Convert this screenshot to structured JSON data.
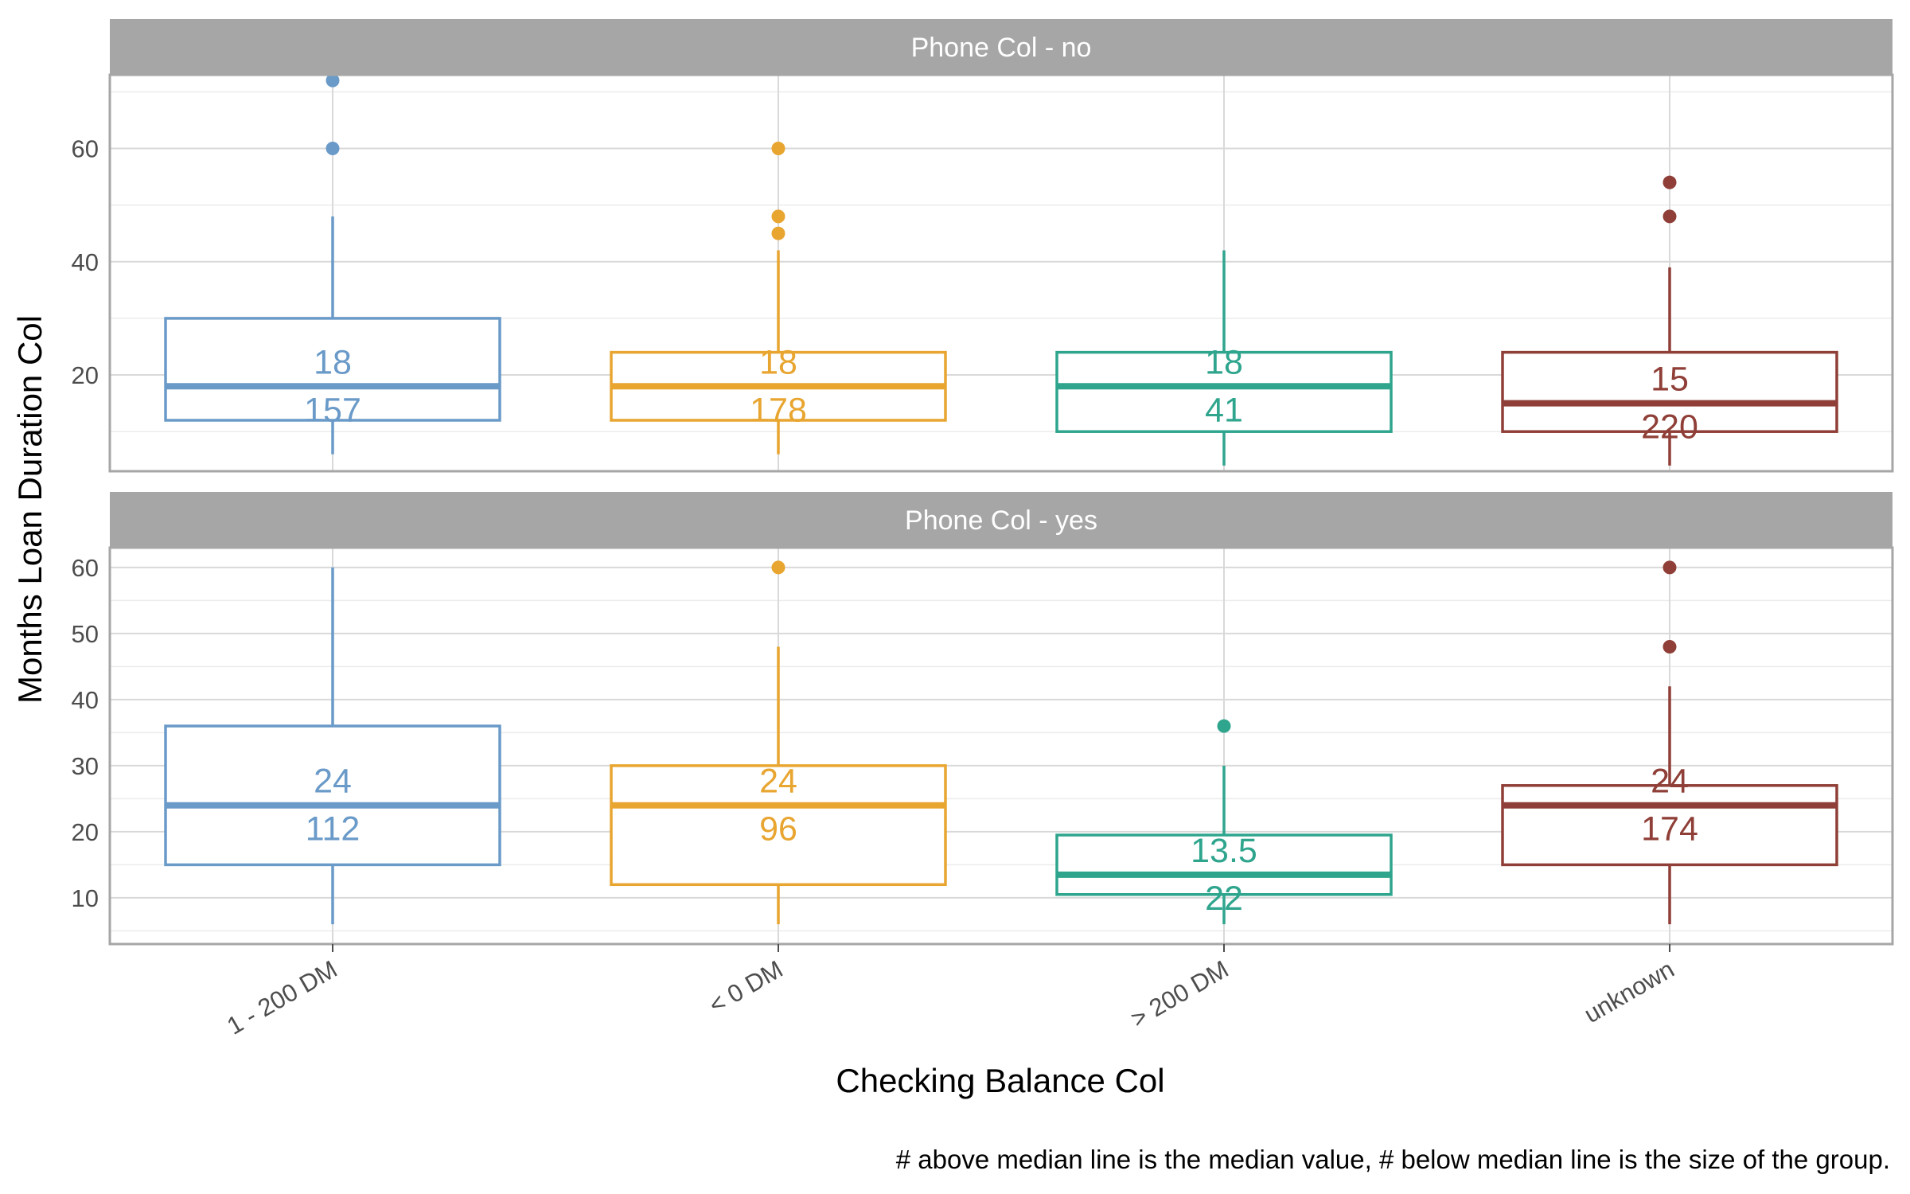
{
  "chart_data": {
    "type": "box",
    "xlabel": "Checking Balance Col",
    "ylabel": "Months Loan Duration Col",
    "caption": "# above median line is the median value, # below median line is the size of the group.",
    "categories": [
      "1 - 200 DM",
      "< 0 DM",
      "> 200 DM",
      "unknown"
    ],
    "colors": [
      "#6a9ac8",
      "#e8a530",
      "#2fa58e",
      "#8f3f37"
    ],
    "grid": true,
    "panels": [
      {
        "title": "Phone Col - no",
        "ylim": [
          3,
          73
        ],
        "yticks": [
          20,
          40,
          60
        ],
        "boxes": [
          {
            "category": "1 - 200 DM",
            "lower_whisker": 6,
            "q1": 12,
            "median": 18,
            "q3": 30,
            "upper_whisker": 48,
            "outliers": [
              60,
              72
            ],
            "median_label": "18",
            "n_label": "157"
          },
          {
            "category": "< 0 DM",
            "lower_whisker": 6,
            "q1": 12,
            "median": 18,
            "q3": 24,
            "upper_whisker": 42,
            "outliers": [
              45,
              48,
              60
            ],
            "median_label": "18",
            "n_label": "178"
          },
          {
            "category": "> 200 DM",
            "lower_whisker": 4,
            "q1": 10,
            "median": 18,
            "q3": 24,
            "upper_whisker": 42,
            "outliers": [],
            "median_label": "18",
            "n_label": "41"
          },
          {
            "category": "unknown",
            "lower_whisker": 4,
            "q1": 10,
            "median": 15,
            "q3": 24,
            "upper_whisker": 39,
            "outliers": [
              48,
              54
            ],
            "median_label": "15",
            "n_label": "220"
          }
        ]
      },
      {
        "title": "Phone Col - yes",
        "ylim": [
          3,
          63
        ],
        "yticks": [
          10,
          20,
          30,
          40,
          50,
          60
        ],
        "boxes": [
          {
            "category": "1 - 200 DM",
            "lower_whisker": 6,
            "q1": 15,
            "median": 24,
            "q3": 36,
            "upper_whisker": 60,
            "outliers": [],
            "median_label": "24",
            "n_label": "112"
          },
          {
            "category": "< 0 DM",
            "lower_whisker": 6,
            "q1": 12,
            "median": 24,
            "q3": 30,
            "upper_whisker": 48,
            "outliers": [
              60
            ],
            "median_label": "24",
            "n_label": "96"
          },
          {
            "category": "> 200 DM",
            "lower_whisker": 6,
            "q1": 10.5,
            "median": 13.5,
            "q3": 19.5,
            "upper_whisker": 30,
            "outliers": [
              36
            ],
            "median_label": "13.5",
            "n_label": "22"
          },
          {
            "category": "unknown",
            "lower_whisker": 6,
            "q1": 15,
            "median": 24,
            "q3": 27,
            "upper_whisker": 42,
            "outliers": [
              48,
              60
            ],
            "median_label": "24",
            "n_label": "174"
          }
        ]
      }
    ]
  }
}
